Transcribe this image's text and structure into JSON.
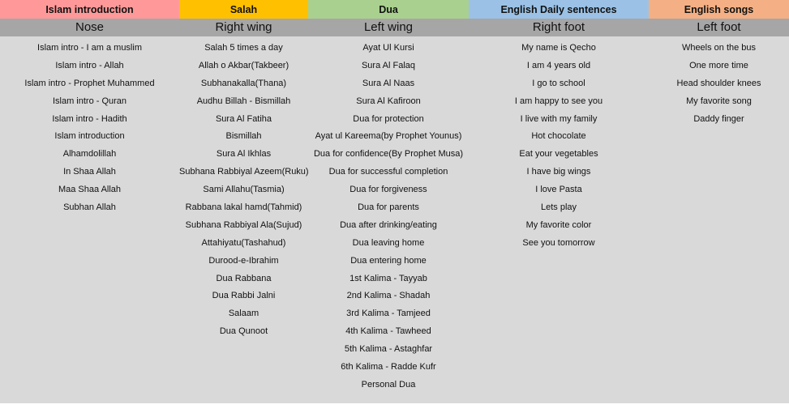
{
  "columns": [
    {
      "category": "Islam introduction",
      "part": "Nose",
      "color": "#ff9999",
      "items": [
        "Islam intro - I am a muslim",
        "Islam intro - Allah",
        "Islam intro - Prophet Muhammed",
        "Islam intro - Quran",
        "Islam intro - Hadith",
        "Islam introduction",
        "Alhamdolillah",
        "In Shaa Allah",
        "Maa Shaa Allah",
        "Subhan Allah"
      ]
    },
    {
      "category": "Salah",
      "part": "Right wing",
      "color": "#ffc000",
      "items": [
        "Salah 5 times a day",
        "Allah o Akbar(Takbeer)",
        "Subhanakalla(Thana)",
        "Audhu Billah - Bismillah",
        "Sura Al Fatiha",
        "Bismillah",
        "Sura Al Ikhlas",
        "Subhana Rabbiyal Azeem(Ruku)",
        "Sami Allahu(Tasmia)",
        "Rabbana lakal hamd(Tahmid)",
        "Subhana Rabbiyal Ala(Sujud)",
        "Attahiyatu(Tashahud)",
        "Durood-e-Ibrahim",
        "Dua Rabbana",
        "Dua Rabbi Jalni",
        "Salaam",
        "Dua Qunoot"
      ]
    },
    {
      "category": "Dua",
      "part": "Left wing",
      "color": "#a9d08e",
      "items": [
        "Ayat Ul Kursi",
        "Sura Al Falaq",
        "Sura Al Naas",
        "Sura Al Kafiroon",
        "Dua for protection",
        "Ayat ul Kareema(by Prophet Younus)",
        "Dua for confidence(By Prophet Musa)",
        "Dua for successful completion",
        "Dua for forgiveness",
        "Dua for parents",
        "Dua after drinking/eating",
        "Dua leaving home",
        "Dua entering home",
        "1st Kalima  - Tayyab",
        "2nd Kalima - Shadah",
        "3rd Kalima - Tamjeed",
        "4th Kalima - Tawheed",
        "5th Kalima - Astaghfar",
        "6th Kalima - Radde Kufr",
        "Personal Dua"
      ]
    },
    {
      "category": "English Daily sentences",
      "part": "Right foot",
      "color": "#9bc2e6",
      "items": [
        "My name is Qecho",
        "I am 4 years old",
        "I go to school",
        "I am happy to see you",
        "I live with my family",
        "Hot chocolate",
        "Eat your vegetables",
        "I have big wings",
        "I love Pasta",
        "Lets play",
        "My favorite color",
        "See you tomorrow"
      ]
    },
    {
      "category": "English songs",
      "part": "Left foot",
      "color": "#f4b084",
      "items": [
        "Wheels on the bus",
        "One more time",
        "Head shoulder knees",
        "My favorite song",
        "Daddy finger"
      ]
    }
  ]
}
